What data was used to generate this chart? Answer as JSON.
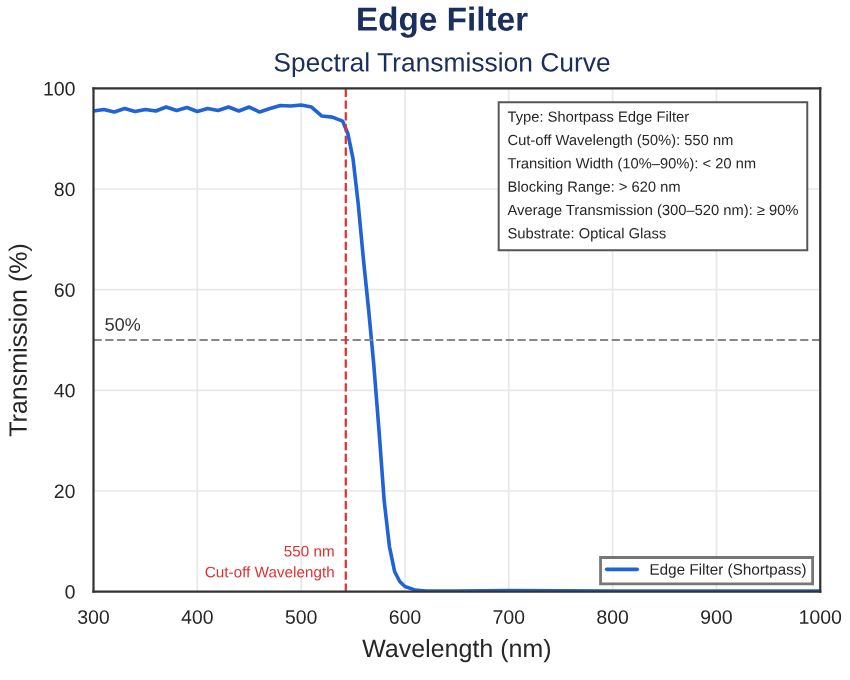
{
  "chart_data": {
    "type": "line",
    "title": "Edge Filter",
    "subtitle": "Spectral Transmission Curve",
    "xlabel": "Wavelength (nm)",
    "ylabel": "Transmission (%)",
    "x": [
      300,
      310,
      320,
      330,
      340,
      350,
      360,
      370,
      380,
      390,
      400,
      410,
      420,
      430,
      440,
      450,
      460,
      470,
      480,
      490,
      500,
      510,
      520,
      530,
      540,
      545,
      550,
      555,
      560,
      565,
      570,
      575,
      580,
      585,
      590,
      595,
      600,
      610,
      620,
      650,
      700,
      800,
      900,
      1000
    ],
    "series": [
      {
        "name": "Edge Filter (Shortpass)",
        "color": "#1f63d6",
        "values": [
          95.5,
          95.8,
          95.3,
          96,
          95.4,
          95.8,
          95.5,
          96.3,
          95.6,
          96.2,
          95.4,
          96,
          95.6,
          96.3,
          95.5,
          96.3,
          95.3,
          96,
          96.6,
          96.5,
          96.7,
          96.3,
          94.5,
          94.3,
          93.5,
          91,
          86,
          77,
          66,
          56,
          45,
          32,
          18,
          9,
          4,
          2,
          1,
          0.3,
          0.1,
          0.1,
          0.2,
          0.1,
          0.1,
          0.1
        ]
      }
    ],
    "xlim": [
      300,
      1000
    ],
    "xticks": [
      300,
      400,
      500,
      600,
      700,
      800,
      900,
      1000
    ],
    "ylim": [
      0,
      100
    ],
    "yticks": [
      0,
      20,
      40,
      60,
      80,
      100
    ],
    "ref_lines": [
      {
        "axis": "y",
        "value": 50,
        "label": "50%",
        "color": "#888888",
        "line_style": "dashed"
      },
      {
        "axis": "x",
        "value": 543,
        "label": "550 nm\nCut-off Wavelength",
        "color": "#e03030",
        "line_style": "dashed"
      }
    ],
    "annotations": [
      "Type: Shortpass Edge Filter\nCut-off Wavelength (50%): 550 nm\nTransition Width (10%–90%): < 20 nm\nBlocking Range: > 620 nm\nAverage Transmission (300–520 nm): ≥ 90%\nSubstrate: Optical Glass"
    ],
    "grid": true,
    "legend": "bottom right",
    "line_style": "solid",
    "marker": "none"
  }
}
